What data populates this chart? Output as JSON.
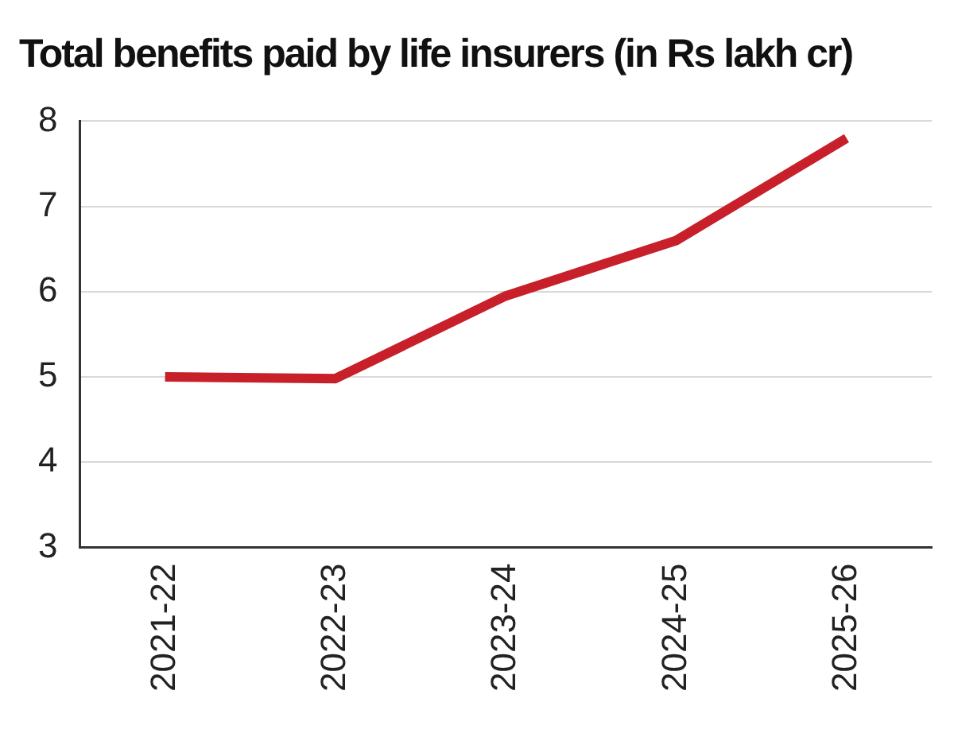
{
  "chart_data": {
    "type": "line",
    "title": "Total benefits paid by life insurers (in Rs lakh cr)",
    "categories": [
      "2021-22",
      "2022-23",
      "2023-24",
      "2024-25",
      "2025-26"
    ],
    "series": [
      {
        "color": "#c8202a",
        "values": [
          5.0,
          4.98,
          5.95,
          6.6,
          7.8
        ]
      }
    ],
    "ylim": [
      3,
      8
    ],
    "yticks": [
      3,
      4,
      5,
      6,
      7,
      8
    ],
    "grid": "y",
    "legend": false,
    "marker": "none",
    "line_style": "solid"
  }
}
